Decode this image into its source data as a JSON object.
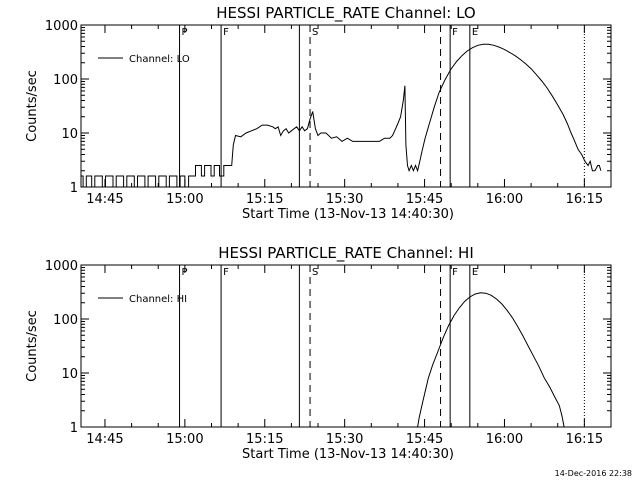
{
  "footer_timestamp": "14-Dec-2016 22:38",
  "chart_data": [
    {
      "type": "line",
      "title": "HESSI PARTICLE_RATE Channel: LO",
      "xlabel": "Start Time (13-Nov-13 14:40:30)",
      "ylabel": "Counts/sec",
      "yscale": "log",
      "ylim": [
        1,
        1000
      ],
      "xlim_minutes_from_start": [
        0,
        99.5
      ],
      "x_tick_labels": [
        "14:45",
        "15:00",
        "15:15",
        "15:30",
        "15:45",
        "16:00",
        "16:15"
      ],
      "y_tick_labels": [
        "1",
        "10",
        "100",
        "1000"
      ],
      "legend": {
        "label": "Channel: LO",
        "position": "top-left"
      },
      "markers": [
        {
          "label": "P",
          "time": "14:59.0",
          "style": "solid"
        },
        {
          "label": "F",
          "time": "15:06.8",
          "style": "solid"
        },
        {
          "label": "",
          "time": "15:21.5",
          "style": "solid"
        },
        {
          "label": "S",
          "time": "15:23.5",
          "style": "dashed"
        },
        {
          "label": "",
          "time": "15:48.0",
          "style": "dashed"
        },
        {
          "label": "F",
          "time": "15:49.8",
          "style": "solid"
        },
        {
          "label": "E",
          "time": "15:53.5",
          "style": "solid"
        },
        {
          "label": "",
          "time": "16:15.0",
          "style": "dotted"
        }
      ],
      "series": [
        {
          "name": "Channel: LO",
          "points": [
            [
              0,
              1.6
            ],
            [
              0.4,
              1.6
            ],
            [
              0.4,
              1
            ],
            [
              1,
              1
            ],
            [
              1,
              1.6
            ],
            [
              2,
              1.6
            ],
            [
              2,
              1
            ],
            [
              2.6,
              1
            ],
            [
              2.6,
              1.6
            ],
            [
              4,
              1.6
            ],
            [
              4,
              1
            ],
            [
              4.6,
              1
            ],
            [
              4.6,
              1.6
            ],
            [
              6,
              1.6
            ],
            [
              6,
              1
            ],
            [
              6.6,
              1
            ],
            [
              6.6,
              1.6
            ],
            [
              8,
              1.6
            ],
            [
              8,
              1
            ],
            [
              8.6,
              1
            ],
            [
              8.6,
              1.6
            ],
            [
              10,
              1.6
            ],
            [
              10,
              1
            ],
            [
              10.6,
              1
            ],
            [
              10.6,
              1.6
            ],
            [
              12,
              1.6
            ],
            [
              12,
              1
            ],
            [
              12.6,
              1
            ],
            [
              12.6,
              1.6
            ],
            [
              14,
              1.6
            ],
            [
              14,
              1
            ],
            [
              14.6,
              1
            ],
            [
              14.6,
              1.6
            ],
            [
              16,
              1.6
            ],
            [
              16,
              1
            ],
            [
              16.6,
              1
            ],
            [
              16.6,
              1.6
            ],
            [
              18,
              1.6
            ],
            [
              18,
              1
            ],
            [
              18.6,
              1
            ],
            [
              18.6,
              1.6
            ],
            [
              19.5,
              1.6
            ],
            [
              19.5,
              1
            ],
            [
              20.2,
              1
            ],
            [
              20.2,
              1.6
            ],
            [
              21.5,
              1.6
            ],
            [
              21.5,
              2.5
            ],
            [
              22.6,
              2.5
            ],
            [
              22.6,
              1.6
            ],
            [
              23.2,
              1.6
            ],
            [
              23.2,
              2.5
            ],
            [
              24.4,
              2.5
            ],
            [
              24.4,
              1.6
            ],
            [
              25,
              1.6
            ],
            [
              25,
              2.5
            ],
            [
              26,
              2.5
            ],
            [
              26,
              1.6
            ],
            [
              26.8,
              1.6
            ],
            [
              26.8,
              2.5
            ],
            [
              28.3,
              2.5
            ],
            [
              28.4,
              3.5
            ],
            [
              28.6,
              6
            ],
            [
              29,
              9
            ],
            [
              30,
              8.5
            ],
            [
              31,
              10
            ],
            [
              32,
              11
            ],
            [
              33,
              12
            ],
            [
              34,
              14
            ],
            [
              35,
              14
            ],
            [
              36,
              13
            ],
            [
              36.5,
              12
            ],
            [
              37,
              13
            ],
            [
              37.5,
              9
            ],
            [
              38,
              11
            ],
            [
              38.5,
              12
            ],
            [
              39,
              10
            ],
            [
              39.5,
              11
            ],
            [
              40,
              12
            ],
            [
              40.5,
              13
            ],
            [
              41,
              11
            ],
            [
              41.5,
              13
            ],
            [
              42,
              11
            ],
            [
              42.5,
              12
            ],
            [
              43,
              18
            ],
            [
              43.5,
              25
            ],
            [
              44,
              12
            ],
            [
              44.5,
              9
            ],
            [
              45,
              10
            ],
            [
              46,
              10
            ],
            [
              47,
              8
            ],
            [
              48,
              8.5
            ],
            [
              49,
              7
            ],
            [
              50,
              8
            ],
            [
              51,
              7
            ],
            [
              52,
              7
            ],
            [
              53,
              7
            ],
            [
              54,
              7
            ],
            [
              55,
              7
            ],
            [
              56,
              7
            ],
            [
              57,
              8
            ],
            [
              58,
              8
            ],
            [
              58.5,
              9
            ],
            [
              59.5,
              15
            ],
            [
              60,
              20
            ],
            [
              60.5,
              40
            ],
            [
              60.8,
              75
            ],
            [
              61,
              6
            ],
            [
              61.3,
              2.5
            ],
            [
              61.6,
              2
            ],
            [
              62,
              2.5
            ],
            [
              62.4,
              2
            ],
            [
              62.8,
              2.5
            ],
            [
              63.2,
              2
            ],
            [
              63.6,
              3
            ],
            [
              64,
              4.5
            ],
            [
              64.6,
              8
            ],
            [
              65.4,
              15
            ],
            [
              66.3,
              30
            ],
            [
              67.2,
              55
            ],
            [
              68.3,
              95
            ],
            [
              69.4,
              150
            ],
            [
              70.5,
              210
            ],
            [
              71.5,
              270
            ],
            [
              72.5,
              330
            ],
            [
              73.5,
              380
            ],
            [
              74.5,
              420
            ],
            [
              75.5,
              440
            ],
            [
              76.5,
              440
            ],
            [
              77.5,
              420
            ],
            [
              78.5,
              390
            ],
            [
              79.5,
              350
            ],
            [
              80.5,
              310
            ],
            [
              81.5,
              270
            ],
            [
              82.5,
              230
            ],
            [
              83.5,
              190
            ],
            [
              84.5,
              155
            ],
            [
              85.5,
              120
            ],
            [
              86.5,
              92
            ],
            [
              87.5,
              68
            ],
            [
              88.5,
              48
            ],
            [
              89.5,
              33
            ],
            [
              90.5,
              22
            ],
            [
              91.3,
              15
            ],
            [
              92,
              10
            ],
            [
              92.7,
              7
            ],
            [
              93.3,
              5
            ],
            [
              94,
              4
            ],
            [
              94.6,
              3
            ],
            [
              95.2,
              2.5
            ],
            [
              95.6,
              3
            ],
            [
              96,
              2
            ],
            [
              96.5,
              2
            ],
            [
              97,
              2.5
            ],
            [
              97.3,
              2.5
            ],
            [
              97.6,
              2
            ]
          ]
        }
      ]
    },
    {
      "type": "line",
      "title": "HESSI PARTICLE_RATE Channel: HI",
      "xlabel": "Start Time (13-Nov-13 14:40:30)",
      "ylabel": "Counts/sec",
      "yscale": "log",
      "ylim": [
        1,
        1000
      ],
      "xlim_minutes_from_start": [
        0,
        99.5
      ],
      "x_tick_labels": [
        "14:45",
        "15:00",
        "15:15",
        "15:30",
        "15:45",
        "16:00",
        "16:15"
      ],
      "y_tick_labels": [
        "1",
        "10",
        "100",
        "1000"
      ],
      "legend": {
        "label": "Channel: HI",
        "position": "top-left"
      },
      "markers": [
        {
          "label": "P",
          "time": "14:59.0",
          "style": "solid"
        },
        {
          "label": "F",
          "time": "15:06.8",
          "style": "solid"
        },
        {
          "label": "",
          "time": "15:21.5",
          "style": "solid"
        },
        {
          "label": "S",
          "time": "15:23.5",
          "style": "dashed"
        },
        {
          "label": "",
          "time": "15:48.0",
          "style": "dashed"
        },
        {
          "label": "F",
          "time": "15:49.8",
          "style": "solid"
        },
        {
          "label": "E",
          "time": "15:53.5",
          "style": "solid"
        },
        {
          "label": "",
          "time": "16:15.0",
          "style": "dotted"
        }
      ],
      "series": [
        {
          "name": "Channel: HI",
          "points": [
            [
              63.2,
              1
            ],
            [
              63.5,
              1.5
            ],
            [
              64,
              2.5
            ],
            [
              64.6,
              4.5
            ],
            [
              65.2,
              8
            ],
            [
              66,
              14
            ],
            [
              67,
              25
            ],
            [
              68,
              45
            ],
            [
              69,
              75
            ],
            [
              70,
              115
            ],
            [
              71,
              160
            ],
            [
              72,
              210
            ],
            [
              73,
              255
            ],
            [
              74,
              290
            ],
            [
              75,
              305
            ],
            [
              76,
              300
            ],
            [
              77,
              275
            ],
            [
              78,
              235
            ],
            [
              79,
              190
            ],
            [
              80,
              145
            ],
            [
              81,
              105
            ],
            [
              82,
              72
            ],
            [
              83,
              48
            ],
            [
              84,
              31
            ],
            [
              85,
              20
            ],
            [
              86,
              13
            ],
            [
              87,
              8
            ],
            [
              88,
              5.5
            ],
            [
              89,
              3.5
            ],
            [
              89.8,
              2.5
            ],
            [
              90.3,
              1.6
            ],
            [
              90.7,
              1
            ]
          ]
        }
      ]
    }
  ]
}
